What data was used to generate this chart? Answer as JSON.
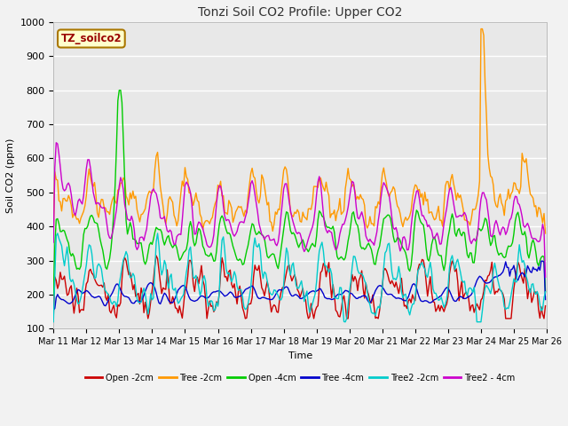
{
  "title": "Tonzi Soil CO2 Profile: Upper CO2",
  "xlabel": "Time",
  "ylabel": "Soil CO2 (ppm)",
  "ylim": [
    100,
    1000
  ],
  "legend_label": "TZ_soilco2",
  "series_colors": {
    "Open -2cm": "#cc0000",
    "Tree -2cm": "#ff9900",
    "Open -4cm": "#00cc00",
    "Tree -4cm": "#0000cc",
    "Tree2 -2cm": "#00cccc",
    "Tree2 - 4cm": "#cc00cc"
  },
  "plot_bg_color": "#e8e8e8",
  "grid_color": "#ffffff",
  "title_color": "#333333",
  "fig_bg_color": "#f2f2f2"
}
